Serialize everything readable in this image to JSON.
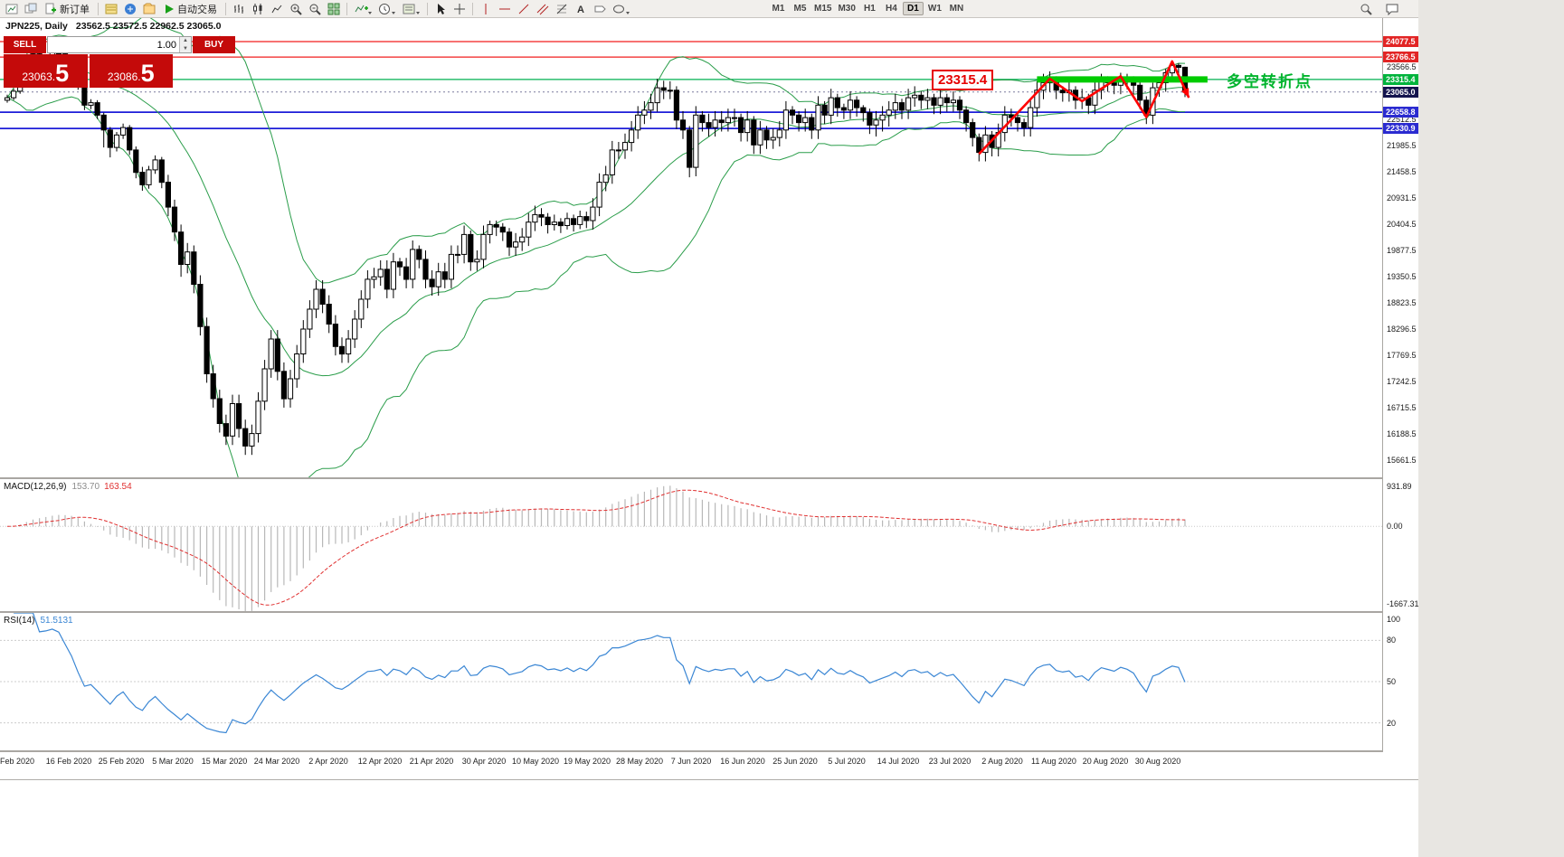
{
  "toolbar": {
    "new_order_label": "新订单",
    "auto_trading_label": "自动交易",
    "timeframes": [
      "M1",
      "M5",
      "M15",
      "M30",
      "H1",
      "H4",
      "D1",
      "W1",
      "MN"
    ],
    "active_timeframe": "D1"
  },
  "header": {
    "symbol_period": "JPN225, Daily",
    "ohlc_text": "23562.5 23572.5 22962.5 23065.0"
  },
  "one_click": {
    "sell_label": "SELL",
    "buy_label": "BUY",
    "volume": "1.00",
    "sell_price_main": "23063.",
    "sell_price_big": "5",
    "buy_price_main": "23086.",
    "buy_price_big": "5"
  },
  "annotations": {
    "price_label": "23315.4",
    "cn_note": "多空转折点"
  },
  "chart_data": {
    "type": "candlestick",
    "symbol": "JPN225",
    "timeframe": "Daily",
    "title": "JPN225, Daily 23562.5 23572.5 22962.5 23065.0",
    "price_axis": {
      "range": [
        15320,
        24550
      ],
      "ticks": [
        "23566.5",
        "22512.5",
        "21985.5",
        "21458.5",
        "20931.5",
        "20404.5",
        "19877.5",
        "19350.5",
        "18823.5",
        "18296.5",
        "17769.5",
        "17242.5",
        "16715.5",
        "16188.5",
        "15661.5"
      ],
      "markers": [
        {
          "text": "24077.5",
          "price": 24077.5,
          "bg": "#e22525"
        },
        {
          "text": "23766.5",
          "price": 23766.5,
          "bg": "#e22525"
        },
        {
          "text": "23315.4",
          "price": 23315.4,
          "bg": "#00b33c"
        },
        {
          "text": "23065.0",
          "price": 23065.0,
          "bg": "#14144e"
        },
        {
          "text": "22658.8",
          "price": 22658.8,
          "bg": "#2b2bd0"
        },
        {
          "text": "22330.9",
          "price": 22330.9,
          "bg": "#2b2bd0"
        }
      ]
    },
    "x_labels": [
      "Feb 2020",
      "16 Feb 2020",
      "25 Feb 2020",
      "5 Mar 2020",
      "15 Mar 2020",
      "24 Mar 2020",
      "2 Apr 2020",
      "12 Apr 2020",
      "21 Apr 2020",
      "30 Apr 2020",
      "10 May 2020",
      "19 May 2020",
      "28 May 2020",
      "7 Jun 2020",
      "16 Jun 2020",
      "25 Jun 2020",
      "5 Jul 2020",
      "14 Jul 2020",
      "23 Jul 2020",
      "2 Aug 2020",
      "11 Aug 2020",
      "20 Aug 2020",
      "30 Aug 2020"
    ],
    "candles": [
      [
        22900,
        23010,
        22850,
        22950
      ],
      [
        22950,
        23130,
        22900,
        23080
      ],
      [
        23080,
        23360,
        23030,
        23320
      ],
      [
        23320,
        23720,
        23270,
        23680
      ],
      [
        23680,
        23880,
        23600,
        23830
      ],
      [
        23830,
        23880,
        23610,
        23690
      ],
      [
        23690,
        23790,
        23600,
        23740
      ],
      [
        23740,
        23900,
        23660,
        23860
      ],
      [
        23860,
        23910,
        23740,
        23830
      ],
      [
        23830,
        23880,
        23610,
        23690
      ],
      [
        23690,
        23740,
        23440,
        23520
      ],
      [
        23520,
        23570,
        23110,
        23200
      ],
      [
        23200,
        23230,
        22700,
        22800
      ],
      [
        22800,
        22920,
        22720,
        22850
      ],
      [
        22850,
        22900,
        22520,
        22600
      ],
      [
        22600,
        22650,
        21950,
        22300
      ],
      [
        22300,
        22360,
        21750,
        21950
      ],
      [
        21950,
        22260,
        21870,
        22200
      ],
      [
        22200,
        22430,
        22120,
        22350
      ],
      [
        22350,
        22400,
        21800,
        21900
      ],
      [
        21900,
        21970,
        21330,
        21450
      ],
      [
        21450,
        21560,
        21080,
        21200
      ],
      [
        21200,
        21580,
        21120,
        21500
      ],
      [
        21500,
        21790,
        21420,
        21700
      ],
      [
        21700,
        21760,
        21130,
        21250
      ],
      [
        21250,
        21400,
        20570,
        20750
      ],
      [
        20750,
        20900,
        20070,
        20250
      ],
      [
        20250,
        20400,
        19350,
        19600
      ],
      [
        19600,
        20030,
        19420,
        19850
      ],
      [
        19850,
        19980,
        19020,
        19200
      ],
      [
        19200,
        19380,
        18170,
        18350
      ],
      [
        18350,
        18530,
        17220,
        17400
      ],
      [
        17400,
        17580,
        16720,
        16900
      ],
      [
        16900,
        17080,
        16220,
        16400
      ],
      [
        16400,
        16580,
        15970,
        16150
      ],
      [
        16150,
        16980,
        15970,
        16800
      ],
      [
        16800,
        16980,
        16120,
        16300
      ],
      [
        16300,
        16480,
        15770,
        15950
      ],
      [
        15950,
        16380,
        15770,
        16200
      ],
      [
        16200,
        17030,
        16020,
        16850
      ],
      [
        16850,
        17680,
        16670,
        17500
      ],
      [
        17500,
        18280,
        17320,
        18100
      ],
      [
        18100,
        18280,
        17270,
        17450
      ],
      [
        17450,
        17630,
        16720,
        16900
      ],
      [
        16900,
        17480,
        16720,
        17300
      ],
      [
        17300,
        17980,
        17120,
        17800
      ],
      [
        17800,
        18480,
        17620,
        18300
      ],
      [
        18300,
        18880,
        18120,
        18700
      ],
      [
        18700,
        19280,
        18520,
        19100
      ],
      [
        19100,
        19280,
        18620,
        18800
      ],
      [
        18800,
        18980,
        18220,
        18400
      ],
      [
        18400,
        18580,
        17770,
        17950
      ],
      [
        17950,
        18130,
        17620,
        17800
      ],
      [
        17800,
        18280,
        17620,
        18100
      ],
      [
        18100,
        18680,
        17920,
        18500
      ],
      [
        18500,
        19080,
        18320,
        18900
      ],
      [
        18900,
        19480,
        18720,
        19300
      ],
      [
        19300,
        19530,
        19120,
        19350
      ],
      [
        19350,
        19680,
        19170,
        19500
      ],
      [
        19500,
        19680,
        18920,
        19100
      ],
      [
        19100,
        19830,
        18920,
        19650
      ],
      [
        19650,
        19730,
        19370,
        19550
      ],
      [
        19550,
        19730,
        19120,
        19300
      ],
      [
        19300,
        20080,
        19120,
        19900
      ],
      [
        19900,
        19980,
        19520,
        19700
      ],
      [
        19700,
        19880,
        19120,
        19300
      ],
      [
        19300,
        19480,
        18970,
        19150
      ],
      [
        19150,
        19630,
        18970,
        19450
      ],
      [
        19450,
        19630,
        19120,
        19300
      ],
      [
        19300,
        19980,
        19120,
        19800
      ],
      [
        19800,
        19980,
        19620,
        19800
      ],
      [
        19800,
        20380,
        19620,
        20200
      ],
      [
        20200,
        20280,
        19470,
        19650
      ],
      [
        19650,
        19880,
        19470,
        19700
      ],
      [
        19700,
        20380,
        19520,
        20200
      ],
      [
        20200,
        20480,
        20020,
        20400
      ],
      [
        20400,
        20480,
        20170,
        20350
      ],
      [
        20350,
        20430,
        20070,
        20250
      ],
      [
        20250,
        20330,
        19770,
        19950
      ],
      [
        19950,
        20230,
        19770,
        20050
      ],
      [
        20050,
        20330,
        19870,
        20150
      ],
      [
        20150,
        20630,
        19970,
        20450
      ],
      [
        20450,
        20780,
        20270,
        20600
      ],
      [
        20600,
        20730,
        20370,
        20550
      ],
      [
        20550,
        20630,
        20220,
        20400
      ],
      [
        20400,
        20600,
        20280,
        20450
      ],
      [
        20450,
        20530,
        20230,
        20380
      ],
      [
        20380,
        20640,
        20300,
        20520
      ],
      [
        20520,
        20600,
        20260,
        20400
      ],
      [
        20400,
        20680,
        20310,
        20560
      ],
      [
        20560,
        20660,
        20330,
        20480
      ],
      [
        20480,
        20930,
        20300,
        20750
      ],
      [
        20750,
        21430,
        20570,
        21250
      ],
      [
        21250,
        21580,
        21070,
        21400
      ],
      [
        21400,
        22080,
        21220,
        21900
      ],
      [
        21900,
        22060,
        21720,
        21900
      ],
      [
        21900,
        22230,
        21720,
        22050
      ],
      [
        22050,
        22480,
        21870,
        22300
      ],
      [
        22300,
        22780,
        22120,
        22600
      ],
      [
        22600,
        22880,
        22420,
        22700
      ],
      [
        22700,
        23030,
        22520,
        22850
      ],
      [
        22850,
        23330,
        22670,
        23150
      ],
      [
        23150,
        23290,
        22920,
        23100
      ],
      [
        23100,
        23280,
        22920,
        23100
      ],
      [
        23100,
        23180,
        22320,
        22500
      ],
      [
        22500,
        22680,
        22120,
        22300
      ],
      [
        22300,
        22380,
        21350,
        21550
      ],
      [
        21550,
        22780,
        21370,
        22600
      ],
      [
        22600,
        22680,
        22270,
        22450
      ],
      [
        22450,
        22630,
        22170,
        22350
      ],
      [
        22350,
        22680,
        22170,
        22500
      ],
      [
        22500,
        22680,
        22270,
        22450
      ],
      [
        22450,
        22730,
        22270,
        22550
      ],
      [
        22550,
        22730,
        22370,
        22550
      ],
      [
        22550,
        22630,
        22070,
        22250
      ],
      [
        22250,
        22680,
        22070,
        22500
      ],
      [
        22500,
        22580,
        21820,
        22000
      ],
      [
        22000,
        22480,
        21820,
        22300
      ],
      [
        22300,
        22380,
        21920,
        22100
      ],
      [
        22100,
        22330,
        21920,
        22150
      ],
      [
        22150,
        22480,
        21970,
        22300
      ],
      [
        22300,
        22880,
        22120,
        22700
      ],
      [
        22700,
        22780,
        22420,
        22600
      ],
      [
        22600,
        22680,
        22270,
        22450
      ],
      [
        22450,
        22730,
        22270,
        22550
      ],
      [
        22550,
        22630,
        22120,
        22300
      ],
      [
        22300,
        22980,
        22120,
        22800
      ],
      [
        22800,
        22880,
        22420,
        22600
      ],
      [
        22600,
        23130,
        22420,
        22950
      ],
      [
        22950,
        23030,
        22570,
        22750
      ],
      [
        22750,
        22830,
        22520,
        22700
      ],
      [
        22700,
        23080,
        22520,
        22900
      ],
      [
        22900,
        22980,
        22570,
        22750
      ],
      [
        22750,
        22800,
        22470,
        22650
      ],
      [
        22650,
        22730,
        22220,
        22400
      ],
      [
        22400,
        22680,
        22170,
        22500
      ],
      [
        22500,
        22780,
        22270,
        22600
      ],
      [
        22600,
        22880,
        22370,
        22700
      ],
      [
        22700,
        23030,
        22520,
        22850
      ],
      [
        22850,
        22930,
        22520,
        22700
      ],
      [
        22700,
        23130,
        22520,
        22950
      ],
      [
        22950,
        23180,
        22770,
        23000
      ],
      [
        23000,
        23080,
        22720,
        22900
      ],
      [
        22900,
        23130,
        22720,
        22950
      ],
      [
        22950,
        23030,
        22620,
        22800
      ],
      [
        22800,
        23130,
        22620,
        22950
      ],
      [
        22950,
        23030,
        22670,
        22850
      ],
      [
        22850,
        23080,
        22670,
        22900
      ],
      [
        22900,
        22980,
        22520,
        22700
      ],
      [
        22700,
        22780,
        22270,
        22450
      ],
      [
        22450,
        22530,
        21970,
        22150
      ],
      [
        22150,
        22230,
        21670,
        21850
      ],
      [
        21850,
        22380,
        21670,
        22200
      ],
      [
        22200,
        22280,
        21770,
        21950
      ],
      [
        21950,
        22430,
        21770,
        22250
      ],
      [
        22250,
        22780,
        22070,
        22600
      ],
      [
        22600,
        22730,
        22370,
        22550
      ],
      [
        22550,
        22630,
        22270,
        22450
      ],
      [
        22450,
        22530,
        22170,
        22350
      ],
      [
        22350,
        22930,
        22170,
        22750
      ],
      [
        22750,
        23280,
        22570,
        23100
      ],
      [
        23100,
        23430,
        22920,
        23250
      ],
      [
        23250,
        23480,
        23070,
        23300
      ],
      [
        23300,
        23380,
        22920,
        23100
      ],
      [
        23100,
        23180,
        22870,
        23050
      ],
      [
        23050,
        23280,
        22870,
        23100
      ],
      [
        23100,
        23180,
        22720,
        22900
      ],
      [
        22900,
        23130,
        22720,
        22950
      ],
      [
        22950,
        23030,
        22620,
        22800
      ],
      [
        22800,
        23280,
        22620,
        23100
      ],
      [
        23100,
        23430,
        22920,
        23300
      ],
      [
        23300,
        23380,
        23070,
        23250
      ],
      [
        23250,
        23330,
        23020,
        23200
      ],
      [
        23200,
        23450,
        23020,
        23350
      ],
      [
        23350,
        23430,
        23120,
        23300
      ],
      [
        23300,
        23380,
        23020,
        23200
      ],
      [
        23200,
        23280,
        22720,
        22900
      ],
      [
        22900,
        22980,
        22420,
        22600
      ],
      [
        22600,
        23250,
        22420,
        23150
      ],
      [
        23150,
        23330,
        22970,
        23250
      ],
      [
        23250,
        23530,
        23070,
        23450
      ],
      [
        23450,
        23660,
        23270,
        23600
      ],
      [
        23600,
        23640,
        23380,
        23560
      ],
      [
        23562,
        23572,
        22962,
        23065
      ]
    ],
    "overlays": {
      "bollinger": {
        "period": 20,
        "deviations": 2,
        "color": "#2a9d4a"
      },
      "hlines": [
        {
          "price": 24077.5,
          "color": "#f21f1f",
          "width": 1.2
        },
        {
          "price": 23766.5,
          "color": "#f21f1f",
          "width": 1.2
        },
        {
          "price": 23315.4,
          "color": "#00b050",
          "width": 1.3
        },
        {
          "price": 23065.0,
          "color": "#7a7a9e",
          "width": 1,
          "dash": "2,3"
        },
        {
          "price": 22658.8,
          "color": "#1d1dd8",
          "width": 1.8
        },
        {
          "price": 22330.9,
          "color": "#1d1dd8",
          "width": 1.8
        }
      ],
      "green_segment": {
        "price": 23315.4,
        "from_index": 160,
        "to_index": 186.5,
        "color": "#00cc00",
        "width": 7
      },
      "zigzag": {
        "color": "#ff0000",
        "width": 2.6,
        "points": [
          [
            151,
            21820
          ],
          [
            162,
            23330
          ],
          [
            167,
            22880
          ],
          [
            173,
            23380
          ],
          [
            177,
            22560
          ],
          [
            181,
            23680
          ],
          [
            183.6,
            22950
          ]
        ]
      }
    },
    "indicators": [
      {
        "name": "MACD",
        "label": "MACD(12,26,9)",
        "values_text": [
          "153.70",
          "163.54"
        ],
        "scale": {
          "max": 931.89,
          "min": -1667.31,
          "labels": [
            "931.89",
            "0.00",
            "-1667.31"
          ]
        },
        "colors": {
          "histogram": "#b8b8b8",
          "signal": "#e03030"
        }
      },
      {
        "name": "RSI",
        "label": "RSI(14)",
        "value_text": "51.5131",
        "scale": {
          "max": 100,
          "min": 0,
          "labels": [
            "100",
            "80",
            "50",
            "20"
          ],
          "levels": [
            80,
            50,
            20
          ]
        },
        "color": "#3a86d4"
      }
    ]
  }
}
